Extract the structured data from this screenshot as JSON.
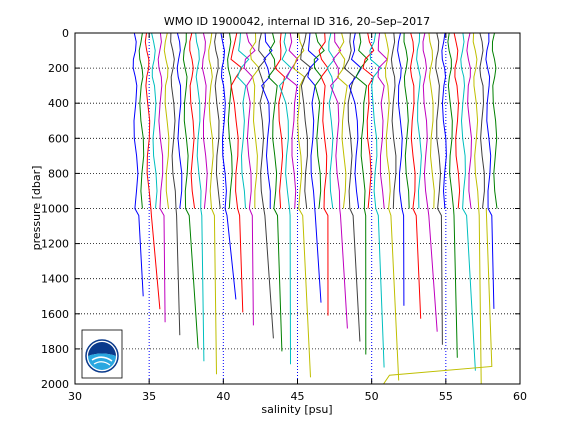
{
  "chart_data": {
    "type": "line",
    "title": "WMO ID 1900042, internal ID 316, 20–Sep–2017",
    "xlabel": "salinity [psu]",
    "ylabel": "pressure [dbar]",
    "xlim": [
      30,
      60
    ],
    "ylim": [
      0,
      2000
    ],
    "y_reversed": true,
    "x_ticks": [
      "30",
      "35",
      "40",
      "45",
      "50",
      "55",
      "60"
    ],
    "y_ticks": [
      "0",
      "200",
      "400",
      "600",
      "800",
      "1000",
      "1200",
      "1400",
      "1600",
      "1800",
      "2000"
    ],
    "grid": "dotted horizontal and vertical reference lines",
    "profile_count": 58,
    "profile_offset_step": 0.425,
    "first_profile_surface_salinity": 34.0,
    "last_profile_surface_salinity": 58.8,
    "palette": [
      "#0000ff",
      "#008000",
      "#ff0000",
      "#00bfbf",
      "#bf00bf",
      "#bfbf00",
      "#404040"
    ],
    "logo": "NOAA"
  }
}
